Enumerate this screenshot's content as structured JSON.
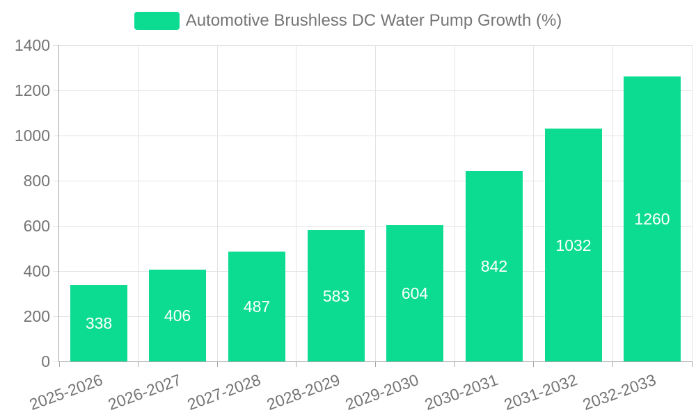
{
  "legend": {
    "label": "Automotive Brushless DC Water Pump Growth (%)"
  },
  "chart_data": {
    "type": "bar",
    "title": "Automotive Brushless DC Water Pump Growth (%)",
    "categories": [
      "2025-2026",
      "2026-2027",
      "2027-2028",
      "2028-2029",
      "2029-2030",
      "2030-2031",
      "2031-2032",
      "2032-2033"
    ],
    "values": [
      338,
      406,
      487,
      583,
      604,
      842,
      1032,
      1260
    ],
    "xlabel": "",
    "ylabel": "",
    "ylim": [
      0,
      1400
    ],
    "ytick_step": 200,
    "yticks": [
      0,
      200,
      400,
      600,
      800,
      1000,
      1200,
      1400
    ],
    "grid": true,
    "legend_position": "top-center",
    "value_labels": "inside-center",
    "xlabel_rotation_deg": -20,
    "colors": {
      "bar": "#0CDC92",
      "bar_label": "#FFFFFF",
      "axis_text": "#757575",
      "axis_line": "#A7A7A7",
      "gridline": "#E4E4E4",
      "background": "#FFFFFF"
    }
  }
}
